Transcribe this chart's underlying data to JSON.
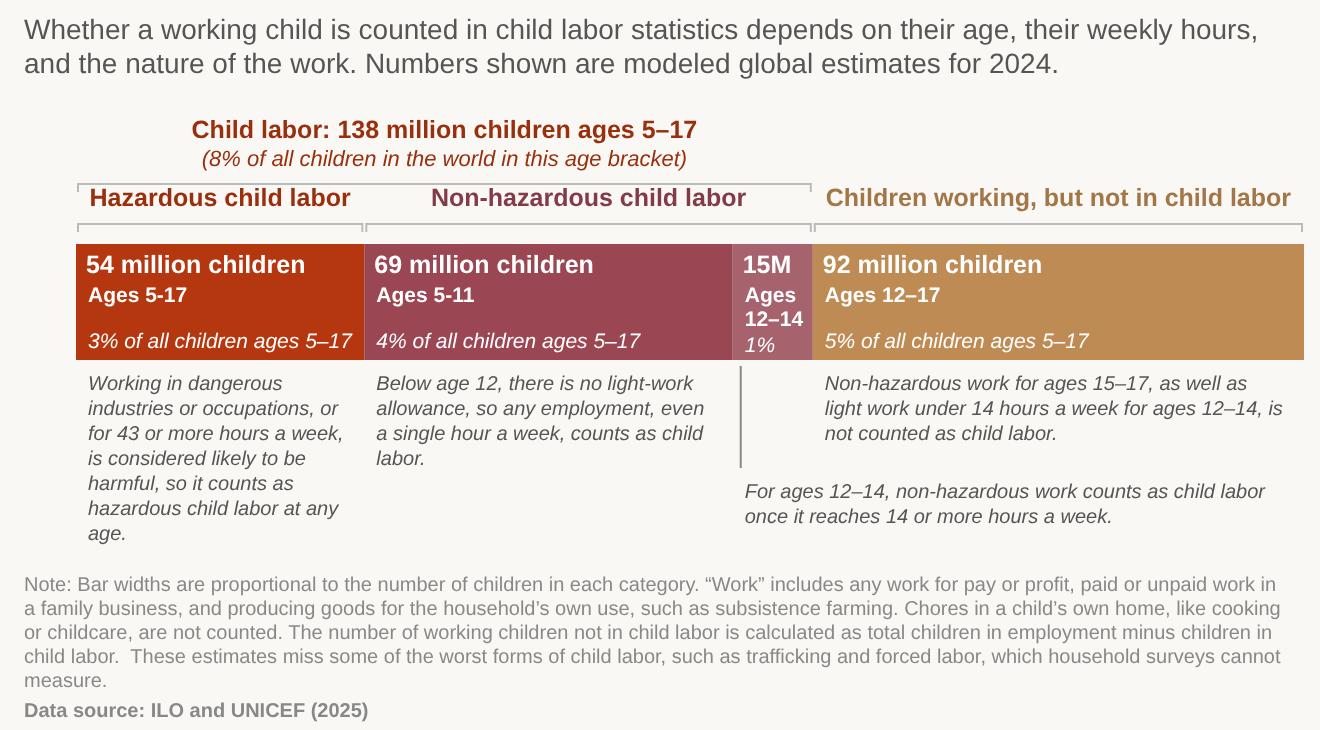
{
  "chart_data": {
    "type": "bar",
    "orientation": "horizontal",
    "stacked": true,
    "subtitle": "Whether a working child is counted in child labor statistics depends on their age, their weekly hours,\nand the nature of the work. Numbers shown are modeled global estimates for 2024.",
    "categories": [
      null
    ],
    "tick_labels": false,
    "series": [
      {
        "color": "#b5370f",
        "values": [
          54
        ],
        "value_labels": [
          "54 million children"
        ]
      },
      {
        "color": "#9a4753",
        "values": [
          69
        ],
        "value_labels": [
          "69 million children"
        ]
      },
      {
        "color": "#a6636e",
        "values": [
          15
        ],
        "value_labels": [
          "15M"
        ]
      },
      {
        "color": "#bf8b54",
        "values": [
          92
        ],
        "value_labels": [
          "92 million children"
        ]
      }
    ],
    "annotations": [
      "Child labor: 138 million children ages 5–17\n(8% of all children in the world in this age bracket)",
      "Hazardous child labor",
      "Non-hazardous child labor",
      "Children working, but not in child labor",
      "Ages 5-17",
      "3% of all children ages 5–17",
      "Working in dangerous industries or occupations, or for 43 or more hours a week, is considered likely to be harmful, so it counts as hazardous child labor at any age.",
      "Ages 5-11",
      "4% of all children ages 5–17",
      "Below age 12, there is no light-work allowance, so any employment, even a single hour a week, counts as child labor.",
      "Ages\n12–14",
      "1%",
      "For ages 12–14, non-hazardous work counts as child labor once it reaches 14 or more hours a week.",
      "Ages 12–17",
      "5% of all children ages 5–17",
      "Non-hazardous work for ages 15–17, as well as light work under 14 hours a week for ages 12–14, is not counted as child labor.",
      "Note: Bar widths are proportional to the number of children in each category. “Work” includes any work for pay or profit, paid or unpaid work in a family business, and producing goods for the household’s own use, such as subsistence farming. Chores in a child’s own home, like cooking or childcare, are not counted. The number of working children not in child labor is calculated as total children in employment minus children in child labor.  These estimates miss some of the worst forms of child labor, such as trafficking and forced labor, which household surveys cannot measure.",
      "Data source: ILO and UNICEF (2025)"
    ]
  }
}
